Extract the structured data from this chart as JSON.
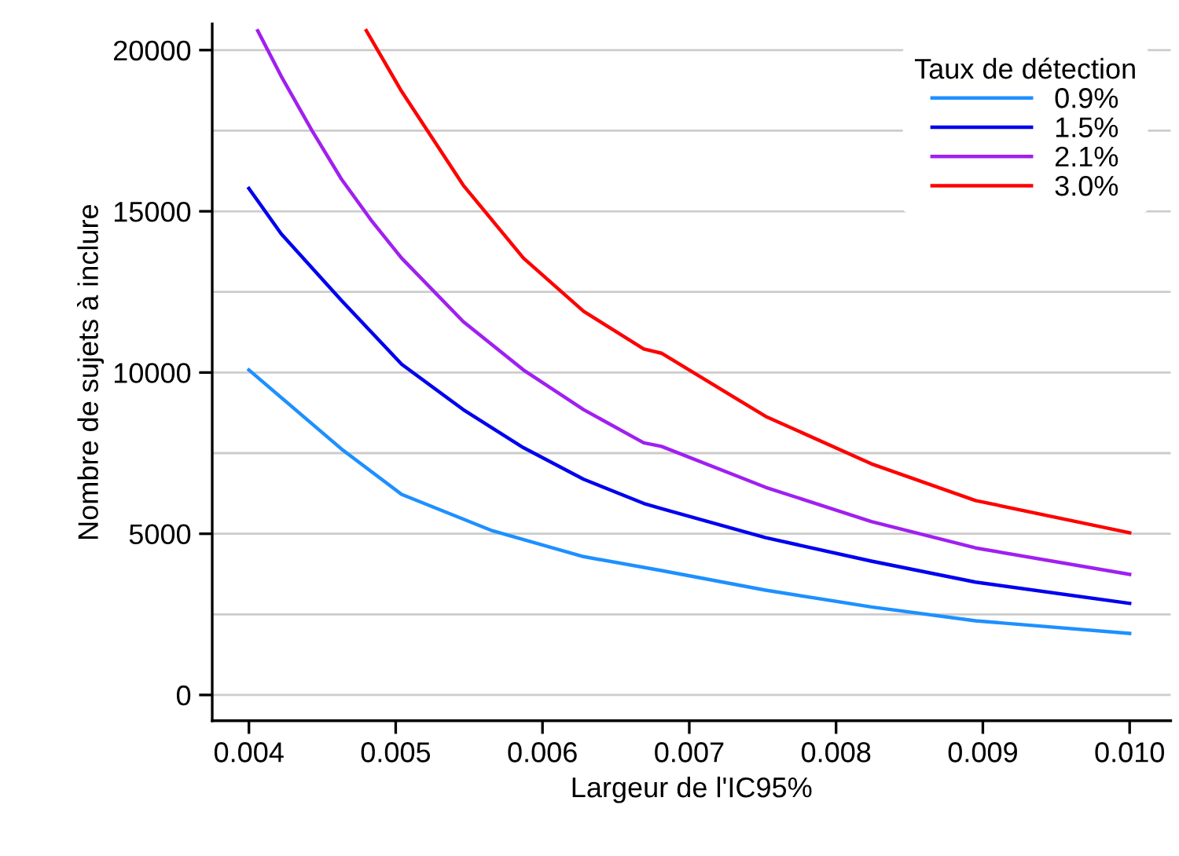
{
  "chart_data": {
    "type": "line",
    "xlabel": "Largeur de l'IC95%",
    "ylabel": "Nombre de sujets à inclure",
    "legend_title": "Taux de détection",
    "xlim": [
      0.00375,
      0.01028
    ],
    "xticks": [
      {
        "value": 0.004,
        "label": "0.004"
      },
      {
        "value": 0.005,
        "label": "0.005"
      },
      {
        "value": 0.006,
        "label": "0.006"
      },
      {
        "value": 0.007,
        "label": "0.007"
      },
      {
        "value": 0.008,
        "label": "0.008"
      },
      {
        "value": 0.009,
        "label": "0.009"
      },
      {
        "value": 0.01,
        "label": "0.010"
      }
    ],
    "ylim": [
      -800,
      20810
    ],
    "yticks": [
      0,
      5000,
      10000,
      15000,
      20000
    ],
    "grid": "y",
    "legend": "top right",
    "marker": "none",
    "line_style": "solid",
    "series": [
      {
        "name": "0.9%",
        "color": "#1e90ff",
        "x": [
          0.004,
          0.00463,
          0.00504,
          0.00566,
          0.00628,
          0.00681,
          0.00752,
          0.00824,
          0.00895,
          0.01
        ],
        "values": [
          10080,
          7630,
          6220,
          5090,
          4290,
          3860,
          3250,
          2730,
          2300,
          1910
        ]
      },
      {
        "name": "1.5%",
        "color": "#0000ee",
        "x": [
          0.004,
          0.00422,
          0.00463,
          0.00504,
          0.00546,
          0.00587,
          0.00628,
          0.00669,
          0.00681,
          0.00752,
          0.00824,
          0.00895,
          0.01
        ],
        "values": [
          15710,
          14300,
          12240,
          10260,
          8850,
          7670,
          6690,
          5940,
          5780,
          4880,
          4150,
          3500,
          2840
        ]
      },
      {
        "name": "2.1%",
        "color": "#a020f0",
        "x": [
          0.00406,
          0.00422,
          0.00443,
          0.00463,
          0.00484,
          0.00504,
          0.00546,
          0.00587,
          0.00628,
          0.00669,
          0.00681,
          0.00752,
          0.00824,
          0.00895,
          0.01
        ],
        "values": [
          20600,
          19190,
          17500,
          16000,
          14680,
          13550,
          11580,
          10080,
          8850,
          7820,
          7710,
          6440,
          5380,
          4560,
          3740
        ]
      },
      {
        "name": "3.0%",
        "color": "#ff0000",
        "x": [
          0.0048,
          0.00504,
          0.00546,
          0.00587,
          0.00628,
          0.00669,
          0.00681,
          0.00752,
          0.00824,
          0.00895,
          0.01
        ],
        "values": [
          20600,
          18720,
          15810,
          13550,
          11900,
          10730,
          10600,
          8640,
          7170,
          6030,
          5030
        ]
      }
    ]
  }
}
